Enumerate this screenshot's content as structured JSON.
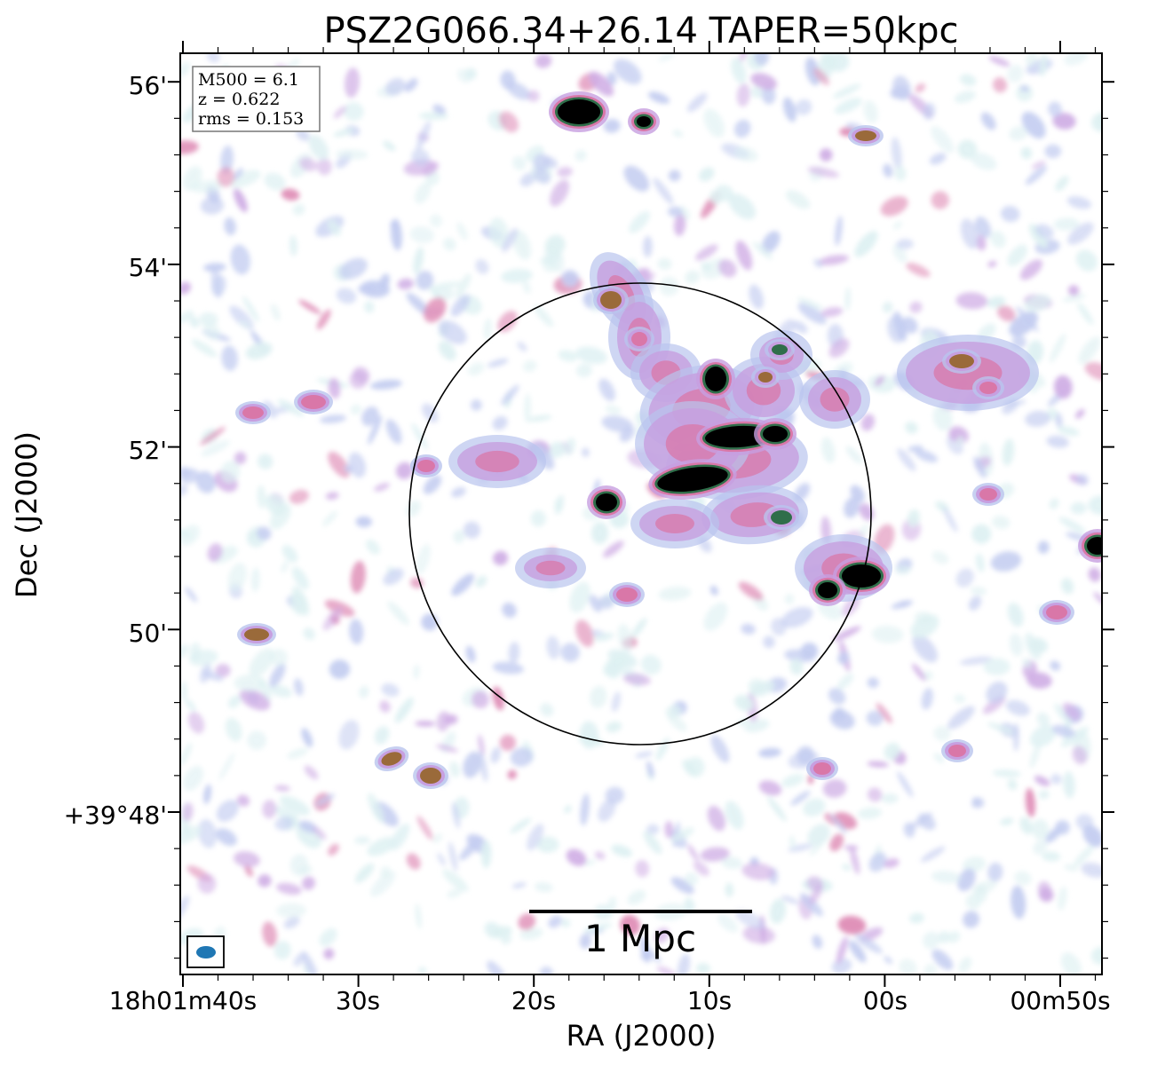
{
  "chart_data": {
    "type": "image",
    "title": "PSZ2G066.34+26.14 TAPER=50kpc",
    "xlabel": "RA (J2000)",
    "ylabel": "Dec (J2000)",
    "x_ticks": [
      "18h01m40s",
      "30s",
      "20s",
      "10s",
      "00s",
      "00m50s"
    ],
    "y_ticks": [
      "+39°48'",
      "50'",
      "52'",
      "54'",
      "56'"
    ],
    "info_box": {
      "lines": [
        "M500 = 6.1",
        "z = 0.622",
        "rms = 0.153"
      ]
    },
    "scale_bar": {
      "label": "1 Mpc"
    },
    "colormap": [
      "#ffffff",
      "#d8eef0",
      "#b9c4ee",
      "#c79fe0",
      "#d977a8",
      "#9a6a3a",
      "#2f6e4a",
      "#000000"
    ],
    "beam_color": "#1f77b4",
    "circle_color": "#000000"
  }
}
